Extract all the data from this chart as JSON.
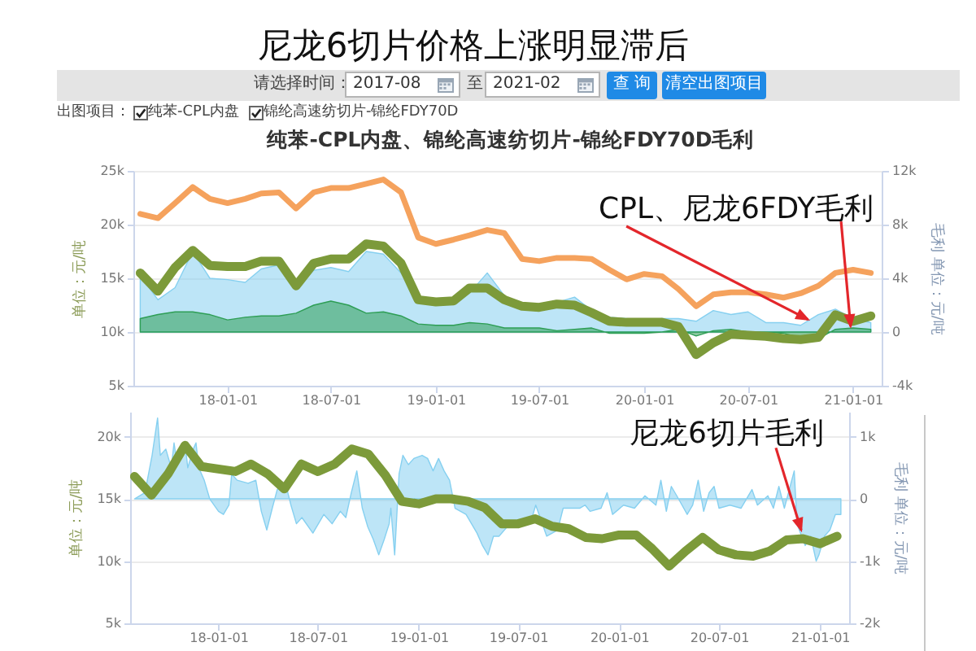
{
  "chart_data": [
    {
      "type": "line",
      "title": "尼龙6切片价格上涨明显滞后",
      "subtitle": "纯苯-CPL内盘、锦纶高速纺切片-锦纶FDY70D毛利",
      "ylabel": "单位：元/吨",
      "y2label": "毛利 单位：元/吨",
      "annotations": [
        "请选择时间：",
        "2017-08",
        "至",
        "2021-02",
        "查 询",
        "清空出图项目",
        "出图项目：",
        "纯苯-CPL内盘",
        "锦纶高速纺切片-锦纶FDY70D",
        {
          "text": "CPL、尼龙6FDY毛利",
          "x": "2020-12-28",
          "y": 10300
        }
      ],
      "x": [
        "2017-08-01",
        "2017-09-01",
        "2017-10-01",
        "2017-11-01",
        "2017-12-01",
        "2018-01-01",
        "2018-02-01",
        "2018-03-01",
        "2018-04-01",
        "2018-05-01",
        "2018-06-01",
        "2018-07-01",
        "2018-08-01",
        "2018-09-01",
        "2018-10-01",
        "2018-11-01",
        "2018-12-01",
        "2019-01-01",
        "2019-02-01",
        "2019-03-01",
        "2019-04-01",
        "2019-05-01",
        "2019-06-01",
        "2019-07-01",
        "2019-08-01",
        "2019-09-01",
        "2019-10-01",
        "2019-11-01",
        "2019-12-01",
        "2020-01-01",
        "2020-02-01",
        "2020-03-01",
        "2020-04-01",
        "2020-05-01",
        "2020-06-01",
        "2020-07-01",
        "2020-08-01",
        "2020-09-01",
        "2020-10-01",
        "2020-11-01",
        "2020-12-01",
        "2021-01-01",
        "2021-02-01"
      ],
      "xlim": [
        "2017-07-20",
        "2021-02-20"
      ],
      "xticks": [
        {
          "value": "2018-01-01",
          "label": "18-01-01"
        },
        {
          "value": "2018-07-01",
          "label": "18-07-01"
        },
        {
          "value": "2019-01-01",
          "label": "19-01-01"
        },
        {
          "value": "2019-07-01",
          "label": "19-07-01"
        },
        {
          "value": "2020-01-01",
          "label": "20-01-01"
        },
        {
          "value": "2020-07-01",
          "label": "20-07-01"
        },
        {
          "value": "2021-01-01",
          "label": "21-01-01"
        }
      ],
      "ylim": [
        5000,
        25000
      ],
      "yticks": [
        {
          "value": 5000,
          "label": "5k"
        },
        {
          "value": 10000,
          "label": "10k"
        },
        {
          "value": 15000,
          "label": "15k"
        },
        {
          "value": 20000,
          "label": "20k"
        },
        {
          "value": 25000,
          "label": "25k"
        }
      ],
      "y2lim": [
        -4000,
        12000
      ],
      "y2ticks": [
        {
          "value": -4000,
          "label": "-4k"
        },
        0,
        {
          "value": 4000,
          "label": "4k"
        },
        {
          "value": 8000,
          "label": "8k"
        },
        {
          "value": 12000,
          "label": "12k"
        }
      ],
      "grid": "y",
      "series": [
        {
          "type": "area",
          "axis": "y2",
          "color": "#86d0f0",
          "values": [
            4200,
            2400,
            3300,
            6000,
            4000,
            3900,
            3700,
            4700,
            5000,
            3200,
            4600,
            4800,
            4500,
            6000,
            5800,
            4400,
            2500,
            2100,
            2100,
            2900,
            4400,
            2700,
            1900,
            1900,
            2200,
            2600,
            1600,
            1100,
            1000,
            500,
            1000,
            1000,
            800,
            1600,
            1300,
            1500,
            700,
            700,
            500,
            1300,
            1700,
            1000,
            700
          ]
        },
        {
          "type": "area",
          "axis": "y2",
          "color": "#2e9e55",
          "values": [
            1000,
            1300,
            1500,
            1500,
            1300,
            900,
            1100,
            1200,
            1200,
            1400,
            2000,
            2300,
            2000,
            1400,
            1500,
            1200,
            600,
            500,
            500,
            700,
            600,
            300,
            300,
            300,
            100,
            200,
            300,
            -100,
            -100,
            -100,
            0,
            200,
            -300,
            100,
            200,
            0,
            0,
            -100,
            -400,
            -500,
            200,
            300,
            200
          ]
        },
        {
          "color": "#f5a25d",
          "values": [
            21000,
            20600,
            22000,
            23500,
            22400,
            22000,
            22400,
            22900,
            23000,
            21500,
            23000,
            23400,
            23400,
            23800,
            24200,
            23000,
            18800,
            18200,
            18600,
            19000,
            19500,
            19200,
            16800,
            16600,
            16900,
            16900,
            16800,
            15800,
            14900,
            15400,
            15200,
            14000,
            12400,
            13500,
            13700,
            13700,
            13500,
            13200,
            13600,
            14300,
            15500,
            15800,
            15500
          ]
        },
        {
          "color": "#7c9a3a",
          "values": [
            15500,
            13800,
            16000,
            17600,
            16200,
            16100,
            16100,
            16600,
            16600,
            14300,
            16400,
            16800,
            16800,
            18200,
            18000,
            16400,
            13000,
            12800,
            12900,
            14100,
            14100,
            13000,
            12400,
            12300,
            12600,
            12500,
            11800,
            11000,
            10900,
            10900,
            10900,
            10500,
            7900,
            9000,
            9800,
            9700,
            9600,
            9400,
            9300,
            9500,
            11600,
            11000,
            11500
          ]
        }
      ]
    },
    {
      "type": "line",
      "ylabel": "单位：元/吨",
      "y2label": "毛利 单位：元/吨",
      "annotations": [
        {
          "text": "尼龙6切片毛利",
          "x": "2020-11-29",
          "y": 12300
        }
      ],
      "x": [
        "2017-08-01",
        "2017-09-01",
        "2017-10-01",
        "2017-11-01",
        "2017-12-01",
        "2018-01-01",
        "2018-02-01",
        "2018-03-01",
        "2018-04-01",
        "2018-05-01",
        "2018-06-01",
        "2018-07-01",
        "2018-08-01",
        "2018-09-01",
        "2018-10-01",
        "2018-11-01",
        "2018-12-01",
        "2019-01-01",
        "2019-02-01",
        "2019-03-01",
        "2019-04-01",
        "2019-05-01",
        "2019-06-01",
        "2019-07-01",
        "2019-08-01",
        "2019-09-01",
        "2019-10-01",
        "2019-11-01",
        "2019-12-01",
        "2020-01-01",
        "2020-02-01",
        "2020-03-01",
        "2020-04-01",
        "2020-05-01",
        "2020-06-01",
        "2020-07-01",
        "2020-08-01",
        "2020-09-01",
        "2020-10-01",
        "2020-11-01",
        "2020-12-01",
        "2021-01-01",
        "2021-02-01"
      ],
      "xlim": [
        "2017-07-24",
        "2021-02-23"
      ],
      "xticks": [
        {
          "value": "2018-01-01",
          "label": "18-01-01"
        },
        {
          "value": "2018-07-01",
          "label": "18-07-01"
        },
        {
          "value": "2019-01-01",
          "label": "19-01-01"
        },
        {
          "value": "2019-07-01",
          "label": "19-07-01"
        },
        {
          "value": "2020-01-01",
          "label": "20-01-01"
        },
        {
          "value": "2020-07-01",
          "label": "20-07-01"
        },
        {
          "value": "2021-01-01",
          "label": "21-01-01"
        }
      ],
      "ylim": [
        5000,
        22000
      ],
      "yticks": [
        {
          "value": 5000,
          "label": "5k"
        },
        {
          "value": 10000,
          "label": "10k"
        },
        {
          "value": 15000,
          "label": "15k"
        },
        {
          "value": 20000,
          "label": "20k"
        }
      ],
      "y2lim": [
        -2000,
        1400
      ],
      "y2ticks": [
        {
          "value": -2000,
          "label": "-2k"
        },
        {
          "value": -1000,
          "label": "-1k"
        },
        0,
        {
          "value": 1000,
          "label": "1k"
        }
      ],
      "grid": "y",
      "series": [
        {
          "type": "area",
          "axis": "y2",
          "color": "#86d0f0",
          "x": [
            "2017-08-01",
            "2017-08-20",
            "2017-09-02",
            "2017-09-12",
            "2017-09-17",
            "2017-09-27",
            "2017-10-07",
            "2017-10-12",
            "2017-10-17",
            "2017-10-27",
            "2017-11-01",
            "2017-11-06",
            "2017-11-16",
            "2017-11-21",
            "2017-11-26",
            "2017-12-06",
            "2017-12-16",
            "2018-01-01",
            "2018-01-10",
            "2018-01-20",
            "2018-01-25",
            "2018-02-04",
            "2018-02-24",
            "2018-03-10",
            "2018-03-20",
            "2018-03-30",
            "2018-04-09",
            "2018-04-18",
            "2018-05-03",
            "2018-05-13",
            "2018-05-23",
            "2018-06-02",
            "2018-06-22",
            "2018-07-02",
            "2018-07-12",
            "2018-07-27",
            "2018-08-11",
            "2018-08-21",
            "2018-08-31",
            "2018-09-10",
            "2018-09-20",
            "2018-09-30",
            "2018-10-10",
            "2018-10-20",
            "2018-10-30",
            "2018-11-08",
            "2018-11-11",
            "2018-11-18",
            "2018-11-26",
            "2018-12-03",
            "2018-12-13",
            "2018-12-23",
            "2019-01-07",
            "2019-01-17",
            "2019-01-27",
            "2019-02-06",
            "2019-02-16",
            "2019-02-26",
            "2019-03-08",
            "2019-03-28",
            "2019-04-17",
            "2019-04-27",
            "2019-05-07",
            "2019-05-17",
            "2019-05-27",
            "2019-06-16",
            "2019-07-04",
            "2019-07-23",
            "2019-08-02",
            "2019-08-22",
            "2019-09-11",
            "2019-09-21",
            "2019-10-21",
            "2019-10-31",
            "2019-11-09",
            "2019-11-29",
            "2019-12-10",
            "2019-12-20",
            "2020-01-09",
            "2020-01-29",
            "2020-02-17",
            "2020-03-08",
            "2020-03-17",
            "2020-03-27",
            "2020-04-05",
            "2020-04-15",
            "2020-05-04",
            "2020-05-14",
            "2020-05-24",
            "2020-06-03",
            "2020-06-13",
            "2020-06-22",
            "2020-07-01",
            "2020-07-21",
            "2020-08-10",
            "2020-08-20",
            "2020-08-30",
            "2020-09-09",
            "2020-09-28",
            "2020-10-08",
            "2020-10-18",
            "2020-10-28",
            "2020-11-15",
            "2020-11-20",
            "2020-12-05",
            "2020-12-15",
            "2020-12-25",
            "2020-12-30",
            "2021-01-09",
            "2021-01-19",
            "2021-01-29",
            "2021-02-08"
          ],
          "values": [
            0,
            100,
            700,
            1300,
            700,
            800,
            500,
            900,
            600,
            800,
            900,
            500,
            800,
            900,
            500,
            300,
            0,
            -200,
            -250,
            -100,
            400,
            300,
            250,
            300,
            -200,
            -500,
            -150,
            150,
            250,
            -100,
            -400,
            -300,
            -550,
            -400,
            -250,
            -400,
            -200,
            -300,
            100,
            450,
            -150,
            -450,
            -650,
            -900,
            -650,
            -400,
            -150,
            -900,
            400,
            700,
            550,
            650,
            700,
            650,
            450,
            650,
            450,
            300,
            -150,
            -250,
            -550,
            -750,
            -900,
            -600,
            -600,
            -400,
            -400,
            -400,
            -100,
            -600,
            -500,
            -150,
            -150,
            -100,
            -200,
            -150,
            100,
            -250,
            -100,
            -150,
            50,
            -100,
            300,
            -200,
            200,
            50,
            -250,
            -100,
            300,
            -200,
            100,
            200,
            -150,
            -100,
            -150,
            0,
            150,
            -100,
            50,
            -150,
            200,
            -150,
            450,
            -400,
            -750,
            -600,
            -1000,
            -900,
            -600,
            -500,
            -250,
            -250
          ]
        },
        {
          "color": "#7c9a3a",
          "values": [
            16800,
            15300,
            17000,
            19300,
            17600,
            17400,
            17200,
            17800,
            17000,
            15800,
            17800,
            17200,
            17800,
            19000,
            18600,
            16900,
            14800,
            14600,
            15000,
            15000,
            14800,
            14300,
            13000,
            13000,
            13400,
            12800,
            12600,
            11900,
            11800,
            12100,
            12100,
            11000,
            9600,
            10800,
            11900,
            10900,
            10500,
            10400,
            10800,
            11700,
            11800,
            11400,
            12000
          ]
        }
      ]
    }
  ]
}
